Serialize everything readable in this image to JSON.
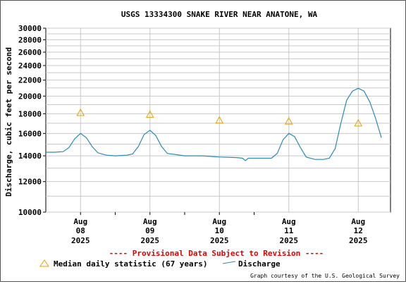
{
  "chart_data": {
    "type": "line",
    "title": "USGS 13334300 SNAKE RIVER NEAR ANATONE, WA",
    "ylabel": "Discharge, cubic feet per second",
    "xlabel": "",
    "y_scale": "log",
    "ylim": [
      10000,
      30000
    ],
    "y_ticks": [
      "10000",
      "12000",
      "14000",
      "16000",
      "18000",
      "20000",
      "22000",
      "24000",
      "26000",
      "28000",
      "30000"
    ],
    "x_ticks": [
      {
        "month": "Aug",
        "day": "08",
        "year": "2025"
      },
      {
        "month": "Aug",
        "day": "09",
        "year": "2025"
      },
      {
        "month": "Aug",
        "day": "10",
        "year": "2025"
      },
      {
        "month": "Aug",
        "day": "11",
        "year": "2025"
      },
      {
        "month": "Aug",
        "day": "12",
        "year": "2025"
      }
    ],
    "grid": true,
    "series": [
      {
        "name": "Discharge",
        "color": "#2a8bb5",
        "points": [
          [
            "2025-08-07 12:00",
            14300
          ],
          [
            "2025-08-07 15:00",
            14300
          ],
          [
            "2025-08-07 18:00",
            14350
          ],
          [
            "2025-08-07 20:00",
            14700
          ],
          [
            "2025-08-07 22:00",
            15500
          ],
          [
            "2025-08-08 00:00",
            16000
          ],
          [
            "2025-08-08 02:00",
            15600
          ],
          [
            "2025-08-08 04:00",
            14800
          ],
          [
            "2025-08-08 06:00",
            14250
          ],
          [
            "2025-08-08 09:00",
            14050
          ],
          [
            "2025-08-08 12:00",
            14000
          ],
          [
            "2025-08-08 16:00",
            14050
          ],
          [
            "2025-08-08 18:00",
            14150
          ],
          [
            "2025-08-08 20:00",
            14800
          ],
          [
            "2025-08-08 22:00",
            15900
          ],
          [
            "2025-08-09 00:00",
            16300
          ],
          [
            "2025-08-09 02:00",
            15800
          ],
          [
            "2025-08-09 04:00",
            14800
          ],
          [
            "2025-08-09 06:00",
            14200
          ],
          [
            "2025-08-09 12:00",
            14000
          ],
          [
            "2025-08-09 18:00",
            14000
          ],
          [
            "2025-08-10 00:00",
            13900
          ],
          [
            "2025-08-10 06:00",
            13850
          ],
          [
            "2025-08-10 08:00",
            13800
          ],
          [
            "2025-08-10 09:00",
            13600
          ],
          [
            "2025-08-10 10:00",
            13800
          ],
          [
            "2025-08-10 18:00",
            13800
          ],
          [
            "2025-08-10 20:00",
            14200
          ],
          [
            "2025-08-10 22:00",
            15400
          ],
          [
            "2025-08-11 00:00",
            16000
          ],
          [
            "2025-08-11 02:00",
            15700
          ],
          [
            "2025-08-11 04:00",
            14700
          ],
          [
            "2025-08-11 06:00",
            13900
          ],
          [
            "2025-08-11 09:00",
            13700
          ],
          [
            "2025-08-11 12:00",
            13700
          ],
          [
            "2025-08-11 14:00",
            13800
          ],
          [
            "2025-08-11 16:00",
            14600
          ],
          [
            "2025-08-11 18:00",
            17000
          ],
          [
            "2025-08-11 20:00",
            19500
          ],
          [
            "2025-08-11 22:00",
            20600
          ],
          [
            "2025-08-12 00:00",
            20950
          ],
          [
            "2025-08-12 02:00",
            20600
          ],
          [
            "2025-08-12 04:00",
            19300
          ],
          [
            "2025-08-12 06:00",
            17500
          ],
          [
            "2025-08-12 08:00",
            15600
          ]
        ]
      }
    ],
    "median_daily_statistic": {
      "marker": "triangle",
      "color": "#e6a000",
      "points": [
        [
          "2025-08-08 00:00",
          18100
        ],
        [
          "2025-08-09 00:00",
          17900
        ],
        [
          "2025-08-10 00:00",
          17300
        ],
        [
          "2025-08-11 00:00",
          17200
        ],
        [
          "2025-08-12 00:00",
          17000
        ]
      ]
    }
  },
  "notice": "---- Provisional Data Subject to Revision ----",
  "legend": {
    "median_label": "Median daily statistic (67 years)",
    "discharge_label": "Discharge"
  },
  "credit": "Graph courtesy of the U.S. Geological Survey"
}
